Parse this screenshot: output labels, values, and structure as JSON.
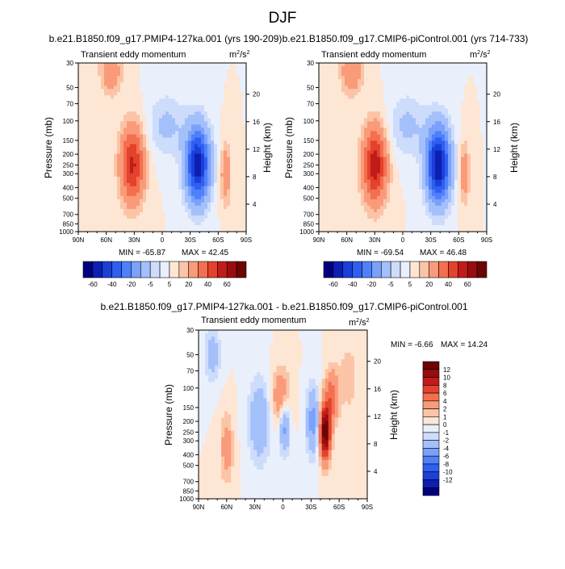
{
  "title": "DJF",
  "units_label": "m",
  "units_sup": "2",
  "units_den": "/s",
  "units_sup2": "2",
  "colors": [
    "#00007f",
    "#0c1fb1",
    "#1b3fd9",
    "#2f5ff0",
    "#4f80fb",
    "#7aa1fb",
    "#a4c0fb",
    "#cddcfb",
    "#e9f0fc",
    "#fde6d4",
    "#fcc4a6",
    "#f99b7a",
    "#f46f50",
    "#e3422c",
    "#c11c1a",
    "#9a0d0d",
    "#6d0505"
  ],
  "chart_data": [
    {
      "type": "heatmap",
      "title": "b.e21.B1850.f09_g17.PMIP4-127ka.001 (yrs 190-209)",
      "subtitle": "Transient eddy momentum",
      "xlabel": "",
      "ylabel": "Pressure (mb)",
      "y2label": "Height (km)",
      "x_ticks": [
        "90N",
        "60N",
        "30N",
        "0",
        "30S",
        "60S",
        "90S"
      ],
      "y_ticks": [
        "30",
        "50",
        "70",
        "100",
        "150",
        "200",
        "250",
        "300",
        "400",
        "500",
        "700",
        "850",
        "1000"
      ],
      "y2_ticks": [
        "20",
        "16",
        "12",
        "8",
        "4"
      ],
      "ylim": [
        30,
        1000
      ],
      "y_scale": "log",
      "min_label": "MIN = -65.87",
      "max_label": "MAX =  42.45",
      "min": -65.87,
      "max": 42.45,
      "colorbar_labels": [
        "-60",
        "-40",
        "-20",
        "-5",
        "5",
        "20",
        "40",
        "60"
      ],
      "features": [
        {
          "lat": 32,
          "p": 250,
          "amp": 42,
          "wlat": 9,
          "wp": 0.55
        },
        {
          "lat": -38,
          "p": 250,
          "amp": -66,
          "wlat": 9,
          "wp": 0.55
        },
        {
          "lat": -68,
          "p": 300,
          "amp": 18,
          "wlat": 4,
          "wp": 0.45
        },
        {
          "lat": 55,
          "p": 35,
          "amp": 18,
          "wlat": 8,
          "wp": 0.35
        },
        {
          "lat": -5,
          "p": 110,
          "amp": -12,
          "wlat": 14,
          "wp": 0.45
        }
      ]
    },
    {
      "type": "heatmap",
      "title": "b.e21.B1850.f09_g17.CMIP6-piControl.001 (yrs 714-733)",
      "subtitle": "Transient eddy momentum",
      "xlabel": "",
      "ylabel": "Pressure (mb)",
      "y2label": "Height (km)",
      "x_ticks": [
        "90N",
        "60N",
        "30N",
        "0",
        "30S",
        "60S",
        "90S"
      ],
      "y_ticks": [
        "30",
        "50",
        "70",
        "100",
        "150",
        "200",
        "250",
        "300",
        "400",
        "500",
        "700",
        "850",
        "1000"
      ],
      "y2_ticks": [
        "20",
        "16",
        "12",
        "8",
        "4"
      ],
      "ylim": [
        30,
        1000
      ],
      "y_scale": "log",
      "min_label": "MIN = -69.54",
      "max_label": "MAX =  46.48",
      "min": -69.54,
      "max": 46.48,
      "colorbar_labels": [
        "-60",
        "-40",
        "-20",
        "-5",
        "5",
        "20",
        "40",
        "60"
      ],
      "features": [
        {
          "lat": 30,
          "p": 250,
          "amp": 46,
          "wlat": 9,
          "wp": 0.55
        },
        {
          "lat": -38,
          "p": 250,
          "amp": -70,
          "wlat": 9,
          "wp": 0.55
        },
        {
          "lat": -66,
          "p": 300,
          "amp": 16,
          "wlat": 4,
          "wp": 0.45
        },
        {
          "lat": 55,
          "p": 35,
          "amp": 20,
          "wlat": 8,
          "wp": 0.35
        },
        {
          "lat": -5,
          "p": 110,
          "amp": -12,
          "wlat": 14,
          "wp": 0.45
        }
      ]
    },
    {
      "type": "heatmap",
      "title": "b.e21.B1850.f09_g17.PMIP4-127ka.001 - b.e21.B1850.f09_g17.CMIP6-piControl.001",
      "subtitle": "Transient eddy momentum",
      "xlabel": "",
      "ylabel": "Pressure (mb)",
      "y2label": "Height (km)",
      "x_ticks": [
        "90N",
        "60N",
        "30N",
        "0",
        "30S",
        "60S",
        "90S"
      ],
      "y_ticks": [
        "30",
        "50",
        "70",
        "100",
        "150",
        "200",
        "250",
        "300",
        "400",
        "500",
        "700",
        "850",
        "1000"
      ],
      "y2_ticks": [
        "20",
        "16",
        "12",
        "8",
        "4"
      ],
      "ylim": [
        30,
        1000
      ],
      "y_scale": "log",
      "min_label": "MIN =  -6.66",
      "max_label": "MAX =  14.24",
      "min": -6.66,
      "max": 14.24,
      "colorbar_labels": [
        "12",
        "10",
        "8",
        "6",
        "4",
        "2",
        "1",
        "0",
        "-1",
        "-2",
        "-4",
        "-6",
        "-8",
        "-10",
        "-12"
      ],
      "features": [
        {
          "lat": -45,
          "p": 250,
          "amp": 14,
          "wlat": 4,
          "wp": 0.4
        },
        {
          "lat": -52,
          "p": 120,
          "amp": 5,
          "wlat": 5,
          "wp": 0.4
        },
        {
          "lat": -32,
          "p": 200,
          "amp": -5,
          "wlat": 5,
          "wp": 0.5
        },
        {
          "lat": 25,
          "p": 200,
          "amp": -4,
          "wlat": 8,
          "wp": 0.6
        },
        {
          "lat": 2,
          "p": 120,
          "amp": 4,
          "wlat": 7,
          "wp": 0.4
        },
        {
          "lat": -2,
          "p": 220,
          "amp": -5,
          "wlat": 4,
          "wp": 0.4
        },
        {
          "lat": 60,
          "p": 350,
          "amp": 3,
          "wlat": 5,
          "wp": 0.5
        },
        {
          "lat": 75,
          "p": 50,
          "amp": -3,
          "wlat": 6,
          "wp": 0.4
        },
        {
          "lat": -70,
          "p": 80,
          "amp": 1.5,
          "wlat": 8,
          "wp": 0.6
        }
      ]
    }
  ]
}
